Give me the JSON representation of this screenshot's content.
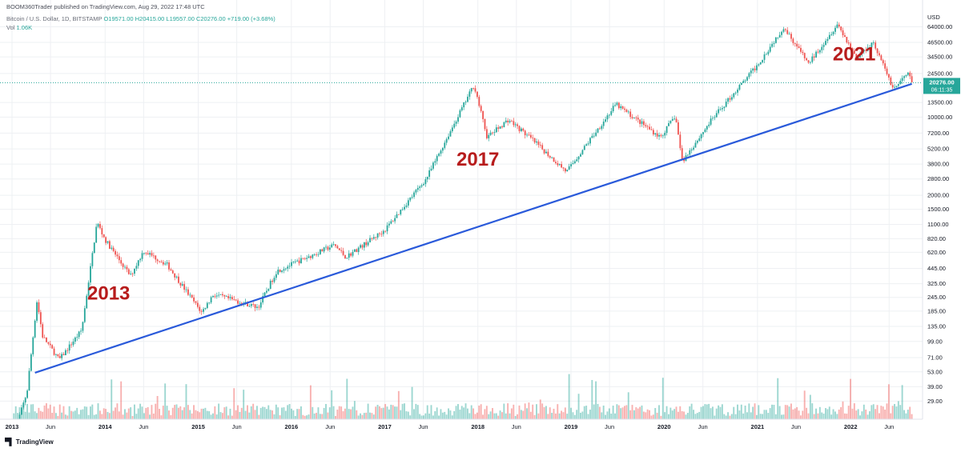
{
  "header": {
    "publisher": "BOOM360Trader published on TradingView.com, Aug 29, 2022 17:48 UTC",
    "symbol": "Bitcoin / U.S. Dollar, 1D, BITSTAMP",
    "ohlc": "O19571.00 H20415.00 L19557.00 C20276.00 +719.00 (+3.68%)",
    "volume_label": "Vol",
    "volume_value": "1.06K"
  },
  "price_axis": {
    "currency": "USD",
    "ticks": [
      "64000.00",
      "46500.00",
      "34500.00",
      "24500.00",
      "13500.00",
      "10000.00",
      "7200.00",
      "5200.00",
      "3800.00",
      "2800.00",
      "2000.00",
      "1500.00",
      "1100.00",
      "820.00",
      "620.00",
      "445.00",
      "325.00",
      "245.00",
      "185.00",
      "135.00",
      "99.00",
      "71.00",
      "53.00",
      "39.00",
      "29.00"
    ],
    "current_price": "20276.00",
    "countdown": "06:11:35",
    "current_color": "#26a69a"
  },
  "time_axis": {
    "labels": [
      "2013",
      "Jun",
      "2014",
      "Jun",
      "2015",
      "Jun",
      "2016",
      "Jun",
      "2017",
      "Jun",
      "2018",
      "Jun",
      "2019",
      "Jun",
      "2020",
      "Jun",
      "2021",
      "Jun",
      "2022",
      "Jun"
    ],
    "major": [
      "2013",
      "2014",
      "2015",
      "2016",
      "2017",
      "2018",
      "2019",
      "2020",
      "2021",
      "2022"
    ]
  },
  "annotations": [
    "2013",
    "2017",
    "2021"
  ],
  "colors": {
    "up": "#26a69a",
    "down": "#ef5350",
    "trendline": "#2a5ada",
    "annotation": "#b71c1c",
    "grid": "#eef0f3"
  },
  "branding": "TradingView",
  "chart_data": {
    "type": "candlestick",
    "log_scale": true,
    "grid": true,
    "y_unit": "USD",
    "ylim": [
      20,
      80000
    ],
    "x_range": [
      "2013-01-01",
      "2022-08-29"
    ],
    "price_path": [
      [
        "2013-01-01",
        13
      ],
      [
        "2013-03-01",
        35
      ],
      [
        "2013-04-09",
        230
      ],
      [
        "2013-05-01",
        110
      ],
      [
        "2013-07-05",
        68
      ],
      [
        "2013-10-01",
        125
      ],
      [
        "2013-11-30",
        1150
      ],
      [
        "2014-01-01",
        800
      ],
      [
        "2014-04-10",
        380
      ],
      [
        "2014-06-01",
        640
      ],
      [
        "2014-09-01",
        480
      ],
      [
        "2015-01-14",
        180
      ],
      [
        "2015-03-01",
        260
      ],
      [
        "2015-08-24",
        200
      ],
      [
        "2015-11-04",
        420
      ],
      [
        "2016-06-18",
        720
      ],
      [
        "2016-08-01",
        560
      ],
      [
        "2017-01-01",
        980
      ],
      [
        "2017-06-12",
        2800
      ],
      [
        "2017-12-17",
        19500
      ],
      [
        "2018-02-06",
        6600
      ],
      [
        "2018-05-01",
        9500
      ],
      [
        "2018-08-01",
        6300
      ],
      [
        "2018-12-15",
        3250
      ],
      [
        "2019-06-26",
        13000
      ],
      [
        "2019-12-18",
        6600
      ],
      [
        "2020-02-14",
        10300
      ],
      [
        "2020-03-12",
        4000
      ],
      [
        "2020-07-01",
        9200
      ],
      [
        "2020-12-31",
        29000
      ],
      [
        "2021-04-14",
        64000
      ],
      [
        "2021-07-20",
        30000
      ],
      [
        "2021-11-10",
        68000
      ],
      [
        "2022-01-24",
        34000
      ],
      [
        "2022-03-30",
        47000
      ],
      [
        "2022-06-18",
        17800
      ],
      [
        "2022-08-14",
        24500
      ],
      [
        "2022-08-29",
        20276
      ]
    ],
    "trendline": [
      [
        "2013-04-01",
        52
      ],
      [
        "2022-08-29",
        19800
      ]
    ],
    "annotations": [
      {
        "text": "2013",
        "date": "2014-01-15",
        "price": 235
      },
      {
        "text": "2017",
        "date": "2018-01-01",
        "price": 3700
      },
      {
        "text": "2021",
        "date": "2022-01-15",
        "price": 32000
      }
    ],
    "current": {
      "price": 20276.0,
      "change": 719.0,
      "change_pct": 3.68
    }
  }
}
